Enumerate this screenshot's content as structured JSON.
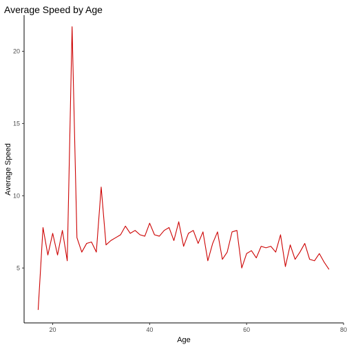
{
  "chart_data": {
    "type": "line",
    "title": "Average Speed by Age",
    "xlabel": "Age",
    "ylabel": "Average Speed",
    "xlim": [
      14.1,
      80
    ],
    "ylim": [
      1.2,
      22.5
    ],
    "xticks": [
      20,
      40,
      60,
      80
    ],
    "yticks": [
      5,
      10,
      15,
      20
    ],
    "grid": false,
    "legend": "none",
    "series": [
      {
        "color": "#cc0000",
        "x": [
          17,
          18,
          19,
          20,
          21,
          22,
          23,
          24,
          25,
          26,
          27,
          28,
          29,
          30,
          31,
          32,
          33,
          34,
          35,
          36,
          37,
          38,
          39,
          40,
          41,
          42,
          43,
          44,
          45,
          46,
          47,
          48,
          49,
          50,
          51,
          52,
          53,
          54,
          55,
          56,
          57,
          58,
          59,
          60,
          61,
          62,
          63,
          64,
          65,
          66,
          67,
          68,
          69,
          70,
          71,
          72,
          73,
          74,
          75,
          76,
          77
        ],
        "y": [
          2.1,
          7.8,
          5.9,
          7.4,
          5.9,
          7.6,
          5.5,
          21.7,
          7.1,
          6.1,
          6.7,
          6.8,
          6.1,
          10.6,
          6.6,
          6.9,
          7.1,
          7.3,
          7.9,
          7.4,
          7.6,
          7.3,
          7.2,
          8.1,
          7.3,
          7.2,
          7.6,
          7.8,
          6.9,
          8.2,
          6.5,
          7.4,
          7.6,
          6.7,
          7.5,
          5.5,
          6.7,
          7.5,
          5.6,
          6.1,
          7.5,
          7.6,
          5.0,
          6.0,
          6.2,
          5.7,
          6.5,
          6.4,
          6.5,
          6.1,
          7.3,
          5.1,
          6.6,
          5.6,
          6.1,
          6.7,
          5.6,
          5.5,
          6.0,
          5.4,
          4.9
        ]
      }
    ]
  }
}
